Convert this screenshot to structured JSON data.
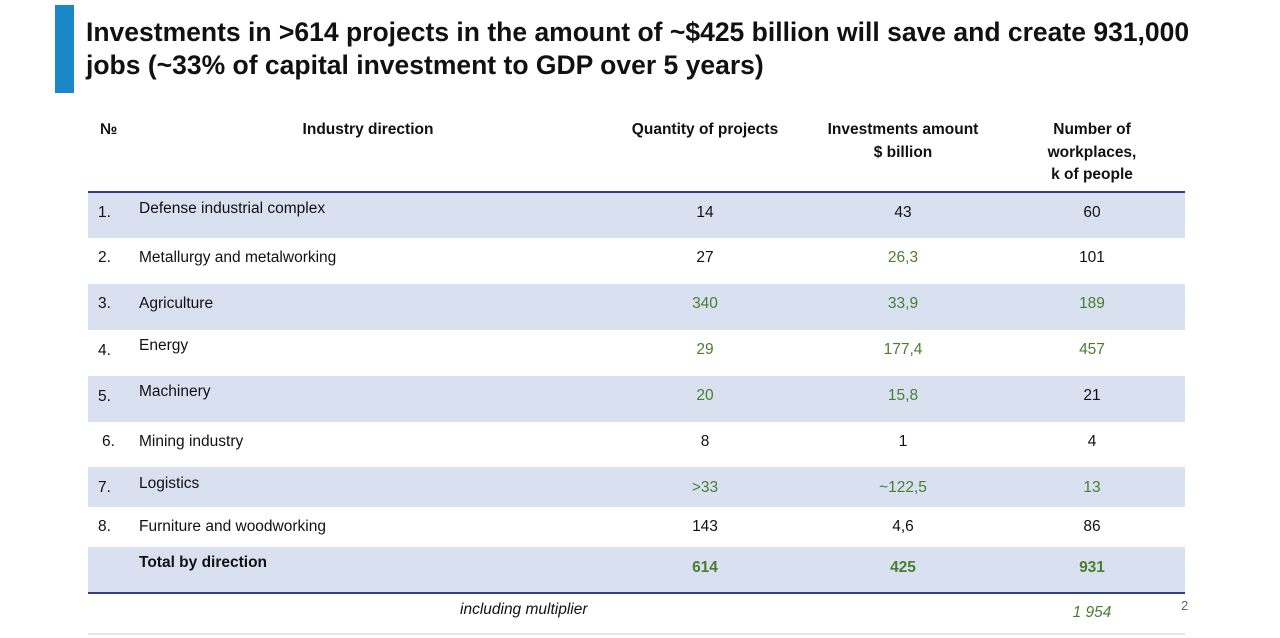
{
  "title": "Investments in >614 projects in the amount of ~$425 billion will save and create 931,000 jobs (~33% of capital investment to GDP over 5 years)",
  "headers": {
    "num": "№",
    "industry": "Industry direction",
    "quantity": "Quantity of projects",
    "investments_l1": "Investments amount",
    "investments_l2": "$ billion",
    "workplaces_l1": "Number of",
    "workplaces_l2": "workplaces,",
    "workplaces_l3": "k of people"
  },
  "rows": [
    {
      "num": "1.",
      "name": "Defense industrial complex",
      "quantity": "14",
      "investments": "43",
      "workplaces": "60"
    },
    {
      "num": "2.",
      "name": "Metallurgy and metalworking",
      "quantity": "27",
      "investments": "26,3",
      "workplaces": "101"
    },
    {
      "num": "3.",
      "name": "Agriculture",
      "quantity": "340",
      "investments": "33,9",
      "workplaces": "189"
    },
    {
      "num": "4.",
      "name": "Energy",
      "quantity": "29",
      "investments": "177,4",
      "workplaces": "457"
    },
    {
      "num": "5.",
      "name": "Machinery",
      "quantity": "20",
      "investments": "15,8",
      "workplaces": "21"
    },
    {
      "num": "6.",
      "name": "Mining industry",
      "quantity": "8",
      "investments": "1",
      "workplaces": "4"
    },
    {
      "num": "7.",
      "name": "Logistics",
      "quantity": ">33",
      "investments": "~122,5",
      "workplaces": "13"
    },
    {
      "num": "8.",
      "name": "Furniture and woodworking",
      "quantity": "143",
      "investments": "4,6",
      "workplaces": "86"
    }
  ],
  "total": {
    "label": "Total by direction",
    "quantity": "614",
    "investments": "425",
    "workplaces": "931"
  },
  "multiplier": {
    "label": "including multiplier",
    "workplaces": "1 954"
  },
  "page_number": "2",
  "colors": {
    "accent": "#1a87c9",
    "row_shade": "#d9e1f1",
    "green_value": "#4a7d2f",
    "rule": "#2f3f8a"
  }
}
